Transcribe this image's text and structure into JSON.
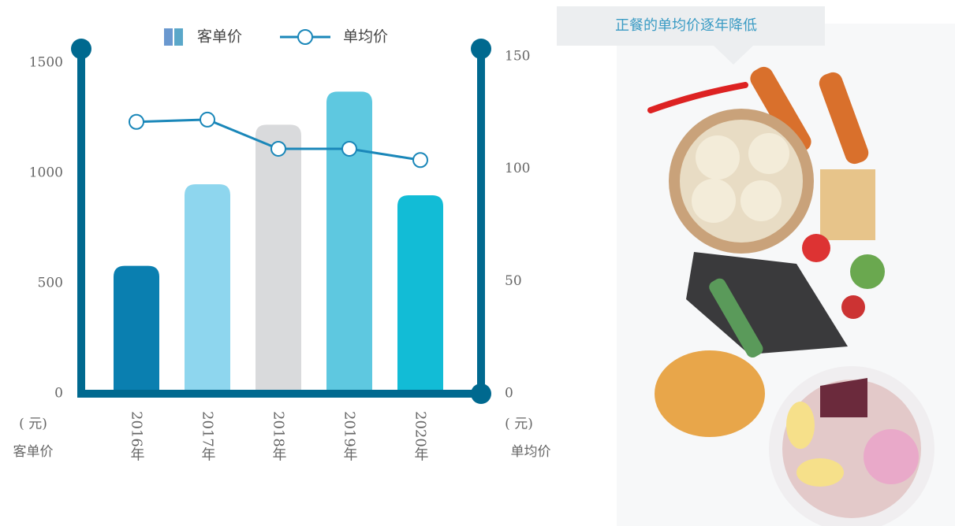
{
  "chart_data": {
    "type": "bar",
    "categories": [
      "2016年",
      "2017年",
      "2018年",
      "2019年",
      "2020年"
    ],
    "series": [
      {
        "name": "客单价",
        "type": "bar",
        "colors": [
          "#0a7fb0",
          "#8ed6ee",
          "#d9dadc",
          "#5ec8e0",
          "#12bcd6"
        ],
        "values": [
          580,
          950,
          1220,
          1370,
          900
        ]
      },
      {
        "name": "单均价",
        "type": "line",
        "axis": "y2",
        "color": "#1a87b9",
        "values": [
          121,
          122,
          109,
          109,
          104
        ]
      }
    ],
    "ylim": [
      0,
      1500
    ],
    "yticks": [
      0,
      500,
      1000,
      1500
    ],
    "y2lim": [
      0,
      150
    ],
    "y2ticks": [
      0,
      50,
      100,
      150
    ],
    "ylabel_unit": "( 元)",
    "ylabel": "客单价",
    "y2label_unit": "( 元)",
    "y2label": "单均价",
    "annotation": "正餐的单均价逐年降低"
  }
}
